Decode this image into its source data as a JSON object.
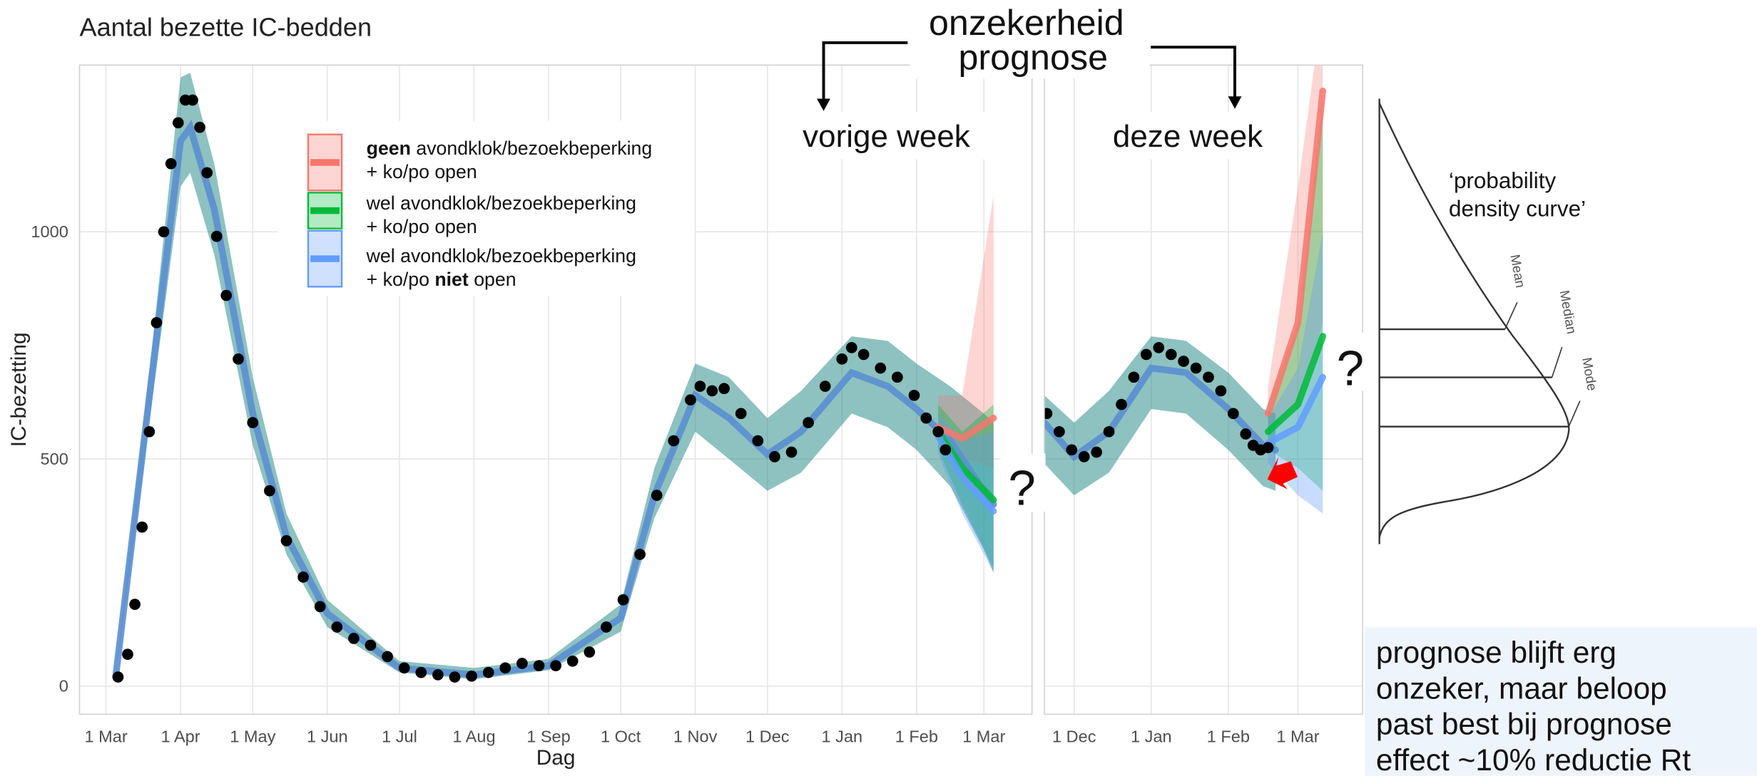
{
  "chart_data": [
    {
      "type": "line",
      "title": "Aantal bezette IC-bedden",
      "ylabel": "IC-bezetting",
      "xlabel": "Dag",
      "xlim": [
        "19 Feb",
        "21 Mar"
      ],
      "xticks": [
        "1 Mar",
        "1 Apr",
        "1 May",
        "1 Jun",
        "1 Jul",
        "1 Aug",
        "1 Sep",
        "1 Oct",
        "1 Nov",
        "1 Dec",
        "1 Jan",
        "1 Feb",
        "1 Mar"
      ],
      "ylim": [
        -62,
        1367
      ],
      "yticks": [
        0,
        500,
        1000
      ],
      "ytick_labels": true,
      "grid": true,
      "observed": {
        "color": "#000000",
        "x": [
          "6 Mar",
          "10 Mar",
          "13 Mar",
          "16 Mar",
          "19 Mar",
          "22 Mar",
          "25 Mar",
          "28 Mar",
          "31 Mar",
          "3 Apr",
          "6 Apr",
          "9 Apr",
          "12 Apr",
          "16 Apr",
          "20 Apr",
          "25 Apr",
          "1 May",
          "8 May",
          "15 May",
          "22 May",
          "29 May",
          "5 Jun",
          "12 Jun",
          "19 Jun",
          "26 Jun",
          "3 Jul",
          "10 Jul",
          "17 Jul",
          "24 Jul",
          "31 Jul",
          "7 Aug",
          "14 Aug",
          "21 Aug",
          "28 Aug",
          "4 Sep",
          "11 Sep",
          "18 Sep",
          "25 Sep",
          "2 Oct",
          "9 Oct",
          "16 Oct",
          "23 Oct",
          "30 Oct",
          "3 Nov",
          "8 Nov",
          "13 Nov",
          "20 Nov",
          "27 Nov",
          "4 Dec",
          "11 Dec",
          "18 Dec",
          "25 Dec",
          "1 Jan",
          "5 Jan",
          "10 Jan",
          "17 Jan",
          "24 Jan",
          "31 Jan",
          "5 Feb",
          "10 Feb",
          "13 Feb"
        ],
        "values": [
          20,
          70,
          180,
          350,
          560,
          800,
          1000,
          1150,
          1240,
          1290,
          1290,
          1230,
          1130,
          990,
          860,
          720,
          580,
          430,
          320,
          240,
          175,
          130,
          105,
          90,
          65,
          40,
          30,
          25,
          20,
          22,
          30,
          40,
          50,
          45,
          45,
          55,
          75,
          130,
          190,
          290,
          420,
          540,
          630,
          660,
          650,
          655,
          600,
          540,
          505,
          515,
          580,
          660,
          720,
          745,
          730,
          700,
          680,
          640,
          590,
          560,
          520
        ]
      },
      "fit": {
        "color": "#2f8f8c",
        "line_color": "#5b8fd0",
        "x": [
          "5 Mar",
          "20 Mar",
          "1 Apr",
          "5 Apr",
          "15 Apr",
          "1 May",
          "15 May",
          "1 Jun",
          "1 Jul",
          "1 Aug",
          "1 Sep",
          "1 Oct",
          "15 Oct",
          "1 Nov",
          "15 Nov",
          "1 Dec",
          "15 Dec",
          "5 Jan",
          "20 Jan",
          "1 Feb",
          "15 Feb",
          "1 Mar",
          "5 Mar"
        ],
        "values": [
          20,
          680,
          1200,
          1230,
          1050,
          600,
          330,
          160,
          40,
          25,
          45,
          150,
          420,
          640,
          590,
          510,
          560,
          690,
          660,
          610,
          540,
          430,
          400
        ],
        "lower": [
          15,
          620,
          1100,
          1130,
          950,
          530,
          290,
          130,
          30,
          15,
          35,
          120,
          370,
          560,
          500,
          430,
          470,
          600,
          570,
          520,
          440,
          300,
          250
        ],
        "upper": [
          25,
          740,
          1340,
          1350,
          1150,
          680,
          380,
          190,
          55,
          40,
          60,
          180,
          480,
          710,
          680,
          590,
          650,
          770,
          760,
          710,
          660,
          600,
          580
        ]
      },
      "series": [
        {
          "name": [
            [
              {
                "text": "geen",
                "bold": true
              },
              {
                "text": " avondklok/bezoekbeperking"
              }
            ],
            [
              {
                "text": "+ ko/po open"
              }
            ]
          ],
          "color": "#f8766d",
          "x": [
            "10 Feb",
            "20 Feb",
            "5 Mar"
          ],
          "values": [
            570,
            545,
            590
          ],
          "lower": [
            540,
            500,
            480
          ],
          "upper": [
            640,
            640,
            1080
          ]
        },
        {
          "name": [
            [
              {
                "text": "wel avondklok/bezoekbeperking"
              }
            ],
            [
              {
                "text": "+ ko/po open"
              }
            ]
          ],
          "color": "#00ba38",
          "x": [
            "10 Feb",
            "20 Feb",
            "5 Mar"
          ],
          "values": [
            560,
            480,
            410
          ],
          "lower": [
            520,
            400,
            260
          ],
          "upper": [
            620,
            560,
            620
          ]
        },
        {
          "name": [
            [
              {
                "text": "wel avondklok/bezoekbeperking"
              }
            ],
            [
              {
                "text": "+ ko/po "
              },
              {
                "text": "niet",
                "bold": true
              },
              {
                "text": " open"
              }
            ]
          ],
          "color": "#619cff",
          "x": [
            "10 Feb",
            "20 Feb",
            "5 Mar"
          ],
          "values": [
            550,
            460,
            385
          ],
          "lower": [
            510,
            380,
            250
          ],
          "upper": [
            600,
            540,
            560
          ]
        }
      ]
    },
    {
      "type": "line",
      "xlim": [
        "19 Nov",
        "27 Mar"
      ],
      "xticks": [
        "1 Dec",
        "1 Jan",
        "1 Feb",
        "1 Mar"
      ],
      "ylim": [
        -62,
        1367
      ],
      "yticks": [
        0,
        500,
        1000
      ],
      "ytick_labels": false,
      "grid": true,
      "observed": {
        "color": "#000000",
        "x": [
          "20 Nov",
          "25 Nov",
          "30 Nov",
          "5 Dec",
          "10 Dec",
          "15 Dec",
          "20 Dec",
          "25 Dec",
          "30 Dec",
          "4 Jan",
          "9 Jan",
          "14 Jan",
          "19 Jan",
          "24 Jan",
          "29 Jan",
          "3 Feb",
          "8 Feb",
          "11 Feb",
          "14 Feb",
          "17 Feb"
        ],
        "values": [
          600,
          560,
          520,
          505,
          515,
          560,
          620,
          680,
          730,
          745,
          730,
          715,
          700,
          680,
          650,
          600,
          555,
          530,
          520,
          525
        ]
      },
      "fit": {
        "color": "#2f8f8c",
        "line_color": "#5b8fd0",
        "x": [
          "19 Nov",
          "1 Dec",
          "15 Dec",
          "1 Jan",
          "15 Jan",
          "1 Feb",
          "15 Feb",
          "20 Feb"
        ],
        "values": [
          580,
          505,
          560,
          700,
          690,
          610,
          530,
          520
        ],
        "lower": [
          490,
          420,
          470,
          610,
          600,
          520,
          440,
          430
        ],
        "upper": [
          640,
          580,
          650,
          770,
          760,
          690,
          610,
          600
        ]
      },
      "series": [
        {
          "color": "#f8766d",
          "x": [
            "17 Feb",
            "1 Mar",
            "11 Mar"
          ],
          "values": [
            600,
            800,
            1310
          ],
          "lower": [
            560,
            620,
            800
          ],
          "upper": [
            660,
            1100,
            1500
          ]
        },
        {
          "color": "#00ba38",
          "x": [
            "17 Feb",
            "1 Mar",
            "11 Mar"
          ],
          "values": [
            560,
            620,
            770
          ],
          "lower": [
            520,
            480,
            430
          ],
          "upper": [
            620,
            800,
            1300
          ]
        },
        {
          "color": "#619cff",
          "x": [
            "17 Feb",
            "1 Mar",
            "11 Mar"
          ],
          "values": [
            535,
            570,
            680
          ],
          "lower": [
            490,
            420,
            380
          ],
          "upper": [
            590,
            700,
            1000
          ]
        }
      ]
    }
  ],
  "annotations": {
    "uncertainty": [
      "onzekerheid",
      "prognose"
    ],
    "last_week": "vorige week",
    "this_week": "deze week",
    "question": "?",
    "density": [
      "‘probability",
      "density curve’"
    ],
    "mean": "Mean",
    "median": "Median",
    "mode": "Mode",
    "conclusion": [
      "prognose blijft erg",
      "onzeker, maar beloop",
      "past best bij prognose",
      "effect ~10% reductie Rt"
    ]
  }
}
